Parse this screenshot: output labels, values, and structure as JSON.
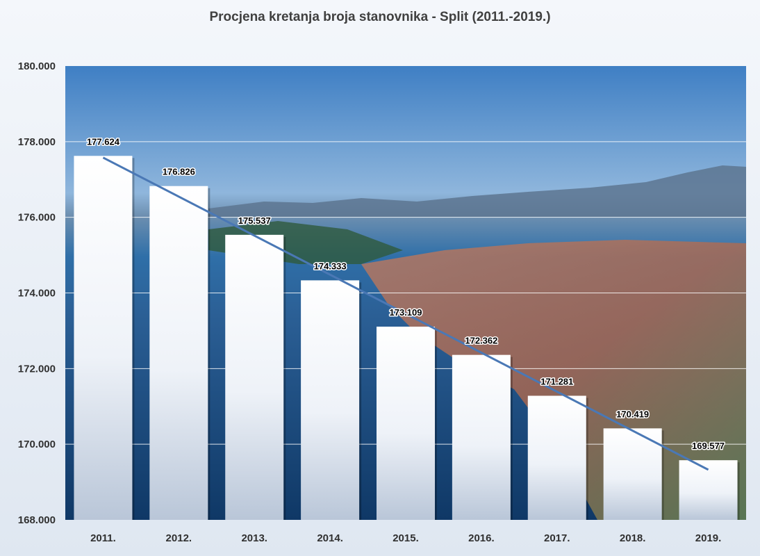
{
  "chart_data": {
    "type": "bar",
    "title": "Procjena kretanja broja stanovnika - Split (2011.-2019.)",
    "categories": [
      "2011.",
      "2012.",
      "2013.",
      "2014.",
      "2015.",
      "2016.",
      "2017.",
      "2018.",
      "2019."
    ],
    "values": [
      177624,
      176826,
      175537,
      174333,
      173109,
      172362,
      171281,
      170419,
      169577
    ],
    "value_labels": [
      "177.624",
      "176.826",
      "175.537",
      "174.333",
      "173.109",
      "172.362",
      "171.281",
      "170.419",
      "169.577"
    ],
    "yticks": [
      "168.000",
      "170.000",
      "172.000",
      "174.000",
      "176.000",
      "178.000",
      "180.000"
    ],
    "ylim": [
      168000,
      180000
    ],
    "ytick_step": 2000,
    "trendline": "linear",
    "grid": true,
    "colors": {
      "bar_fill": "#ffffff",
      "bar_shade": "#b9c6d8",
      "trendline": "#4a78b5",
      "gridline": "#ffffff",
      "sky": "#3f7fc4",
      "sea": "#1b4f86"
    }
  }
}
